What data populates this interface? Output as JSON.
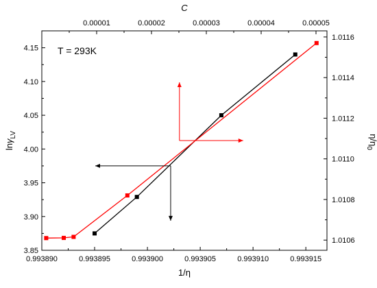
{
  "chart_data": {
    "type": "scatter",
    "annotation": "T = 293K",
    "axes": {
      "bottom": {
        "label": "1/η",
        "range": [
          0.99389,
          0.993917
        ],
        "ticks": [
          "0.993890",
          "0.993895",
          "0.993900",
          "0.993905",
          "0.993910",
          "0.993915"
        ],
        "tick_values": [
          0.99389,
          0.993895,
          0.9939,
          0.993905,
          0.99391,
          0.993915
        ]
      },
      "left": {
        "label_main": "ln",
        "label_sym": "γ",
        "label_sub": "LV",
        "range": [
          3.85,
          4.175
        ],
        "ticks": [
          "3.85",
          "3.90",
          "3.95",
          "4.00",
          "4.05",
          "4.10",
          "4.15"
        ],
        "tick_values": [
          3.85,
          3.9,
          3.95,
          4.0,
          4.05,
          4.1,
          4.15
        ]
      },
      "top": {
        "label": "C",
        "range": [
          0,
          5.2e-05
        ],
        "ticks": [
          "0.00001",
          "0.00002",
          "0.00003",
          "0.00004",
          "0.00005"
        ],
        "tick_values": [
          1e-05,
          2e-05,
          3e-05,
          4e-05,
          5e-05
        ]
      },
      "right": {
        "label_main": "η/η",
        "label_sub": "0",
        "range": [
          1.01055,
          1.01163
        ],
        "ticks": [
          "1.0106",
          "1.0108",
          "1.0110",
          "1.0112",
          "1.0114",
          "1.0116"
        ],
        "tick_values": [
          1.0106,
          1.0108,
          1.011,
          1.0112,
          1.0114,
          1.0116
        ]
      }
    },
    "series": [
      {
        "color": "#000000",
        "marker": "square",
        "axes": [
          "bottom",
          "left"
        ],
        "points": [
          {
            "x": 0.993895,
            "y": 3.875
          },
          {
            "x": 0.993899,
            "y": 3.929
          },
          {
            "x": 0.993907,
            "y": 4.05
          },
          {
            "x": 0.993914,
            "y": 4.14
          }
        ]
      },
      {
        "color": "#ff0000",
        "marker": "square",
        "axes": [
          "top",
          "right"
        ],
        "points": [
          {
            "x": 8e-07,
            "y": 1.01061
          },
          {
            "x": 4e-06,
            "y": 1.010611
          },
          {
            "x": 5.8e-06,
            "y": 1.010616
          },
          {
            "x": 1.56e-05,
            "y": 1.01082
          },
          {
            "x": 5.01e-05,
            "y": 1.01157
          }
        ]
      }
    ],
    "arrows": {
      "black": {
        "color": "#000000",
        "origin": {
          "x": 0.9939022,
          "y": 3.975
        },
        "directions": [
          "left",
          "down"
        ]
      },
      "red": {
        "color": "#ff0000",
        "origin": {
          "x": 2.51e-05,
          "y": 1.01109
        },
        "directions": [
          "up",
          "right"
        ]
      }
    }
  }
}
